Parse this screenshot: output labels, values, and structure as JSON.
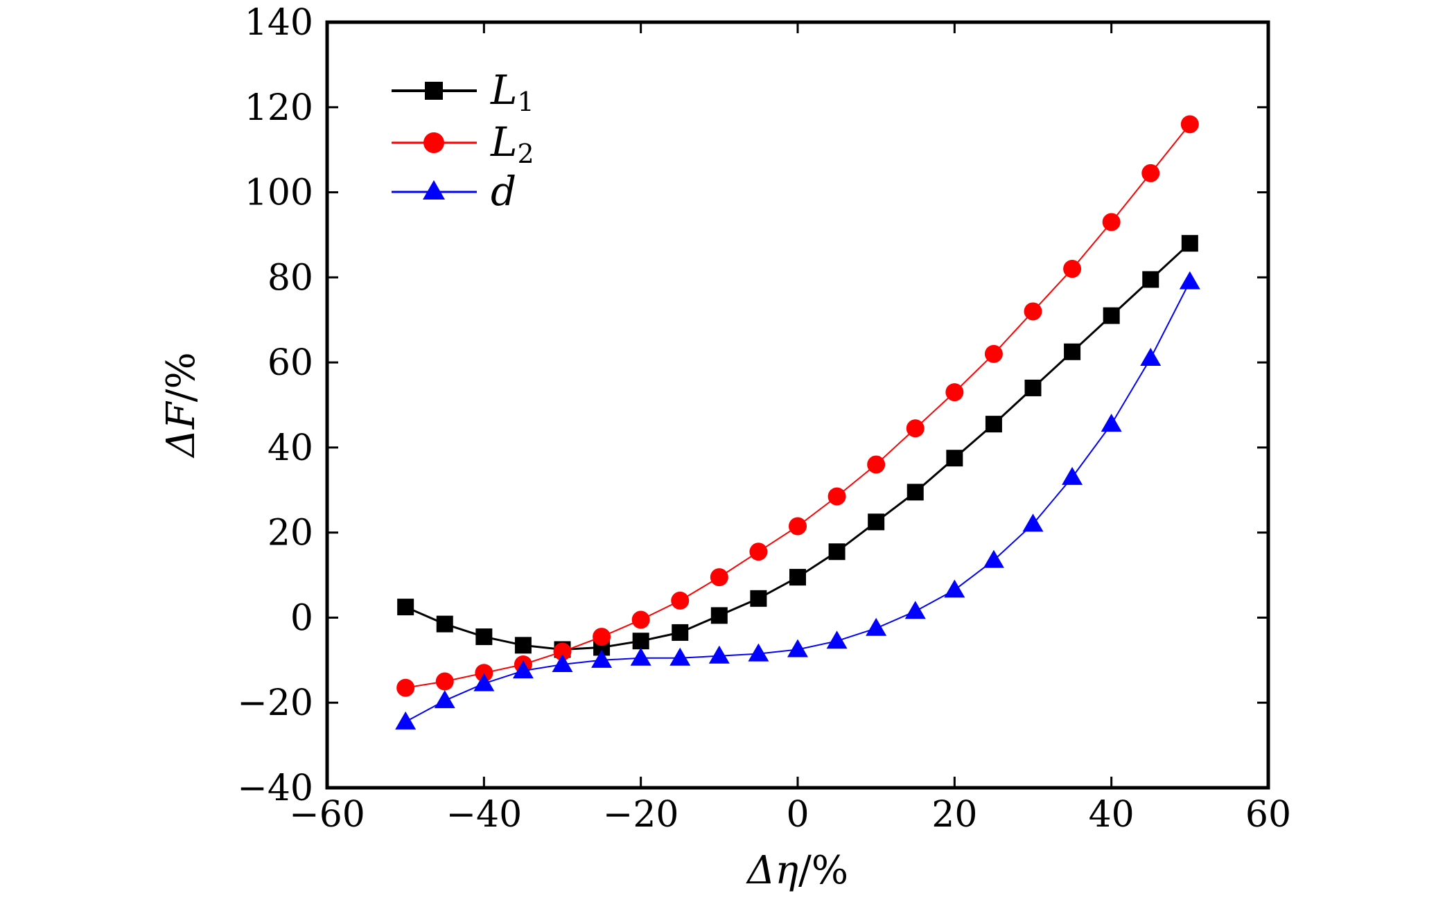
{
  "chart_data": {
    "type": "line",
    "xlabel_symbol": "Δη",
    "xlabel_unit": "/%",
    "ylabel_symbol": "ΔF",
    "ylabel_unit": "/%",
    "xlim": [
      -60,
      60
    ],
    "ylim": [
      -40,
      140
    ],
    "xticks": [
      -60,
      -40,
      -20,
      0,
      20,
      40,
      60
    ],
    "yticks": [
      -40,
      -20,
      0,
      20,
      40,
      60,
      80,
      100,
      120,
      140
    ],
    "grid": false,
    "legend_position": "top-left",
    "x": [
      -50,
      -45,
      -40,
      -35,
      -30,
      -25,
      -20,
      -15,
      -10,
      -5,
      0,
      5,
      10,
      15,
      20,
      25,
      30,
      35,
      40,
      45,
      50
    ],
    "series": [
      {
        "name": "L",
        "subscript": "1",
        "color": "#000000",
        "marker": "square",
        "values": [
          2.5,
          -1.5,
          -4.5,
          -6.5,
          -7.5,
          -7,
          -5.5,
          -3.5,
          0.5,
          4.5,
          9.5,
          15.5,
          22.5,
          29.5,
          37.5,
          45.5,
          54,
          62.5,
          71,
          79.5,
          88
        ]
      },
      {
        "name": "L",
        "subscript": "2",
        "color": "#ff0000",
        "marker": "circle",
        "values": [
          -16.5,
          -15,
          -13,
          -11,
          -8,
          -4.5,
          -0.5,
          4,
          9.5,
          15.5,
          21.5,
          28.5,
          36,
          44.5,
          53,
          62,
          72,
          82,
          93,
          104.5,
          116
        ]
      },
      {
        "name": "d",
        "subscript": "",
        "color": "#0000ff",
        "marker": "triangle",
        "values": [
          -24.5,
          -19.5,
          -15.5,
          -12.5,
          -11,
          -10,
          -9.5,
          -9.5,
          -9,
          -8.5,
          -7.5,
          -5.5,
          -2.5,
          1.5,
          6.5,
          13.5,
          22,
          33,
          45.5,
          61,
          79
        ]
      }
    ]
  }
}
